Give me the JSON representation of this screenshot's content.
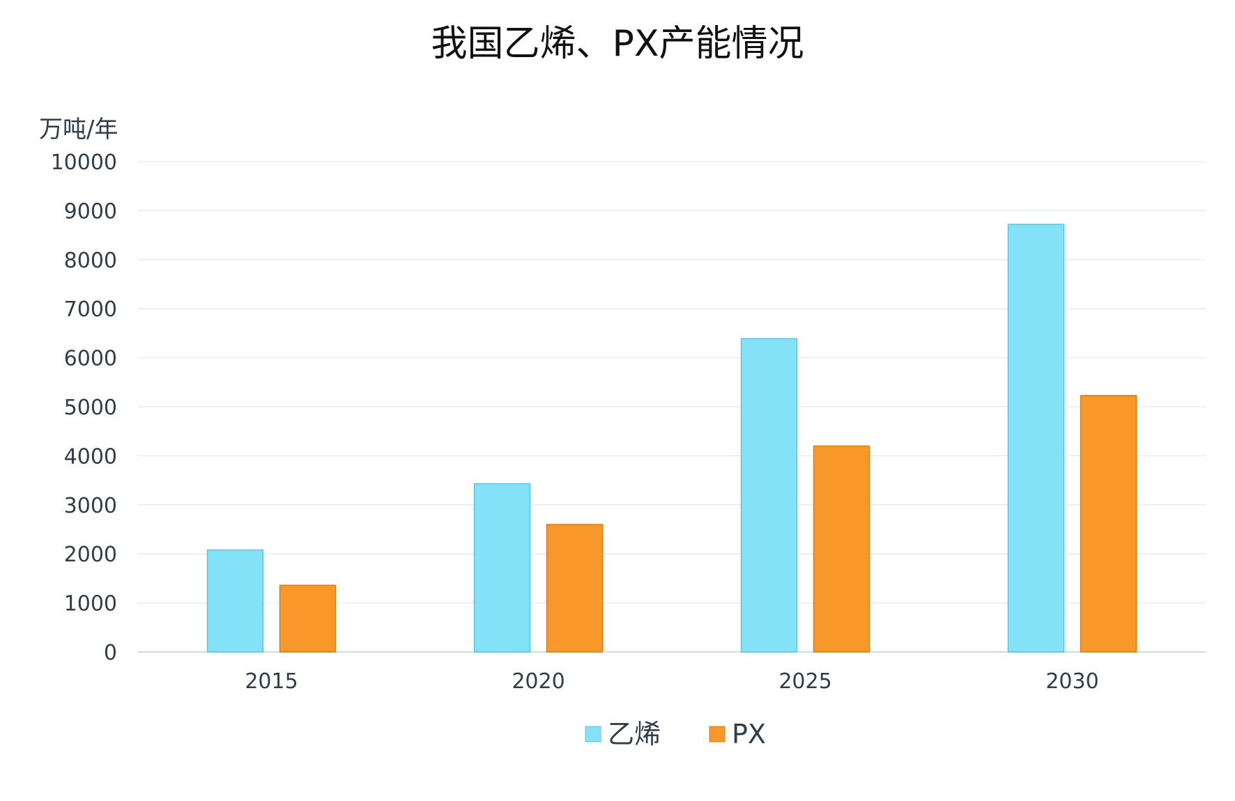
{
  "chart_data": {
    "type": "bar",
    "title": "我国乙烯、PX产能情况",
    "ylabel": "万吨/年",
    "xlabel": "",
    "categories": [
      "2015",
      "2020",
      "2025",
      "2030"
    ],
    "series": [
      {
        "name": "乙烯",
        "color": "#84e2f8",
        "values": [
          2080,
          3430,
          6390,
          8720
        ]
      },
      {
        "name": "PX",
        "color": "#f8982a",
        "values": [
          1360,
          2600,
          4200,
          5230
        ]
      }
    ],
    "ylim": [
      0,
      10000
    ],
    "yticks": [
      "0",
      "1000",
      "2000",
      "3000",
      "4000",
      "5000",
      "6000",
      "7000",
      "8000",
      "9000",
      "10000"
    ],
    "grid": true,
    "legend_position": "bottom-center"
  }
}
